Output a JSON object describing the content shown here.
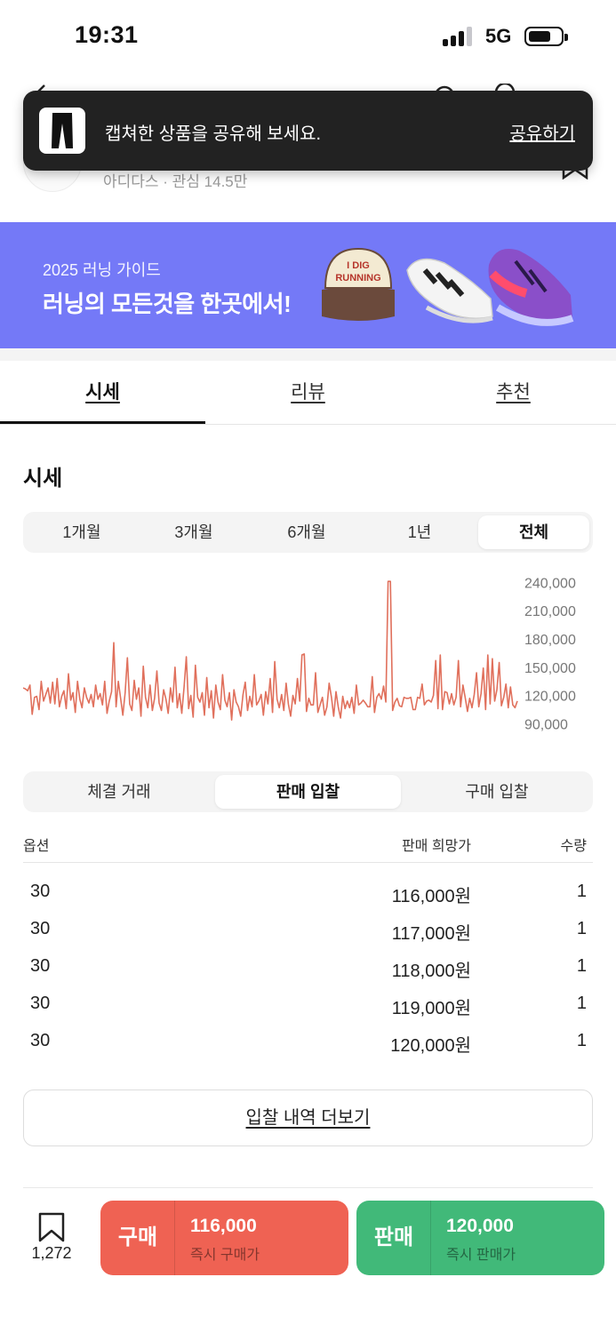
{
  "status_bar": {
    "time": "19:31",
    "network": "5G"
  },
  "product": {
    "brand_line": "아디다스 · 관심 14.5만"
  },
  "toast": {
    "message": "캡쳐한 상품을 공유해 보세요.",
    "action": "공유하기"
  },
  "banner": {
    "subtitle": "2025 러닝 가이드",
    "title": "러닝의 모든것을 한곳에서!",
    "cap_text_1": "I DIG",
    "cap_text_2": "RUNNING"
  },
  "tabs": [
    {
      "label": "시세",
      "active": true
    },
    {
      "label": "리뷰",
      "active": false
    },
    {
      "label": "추천",
      "active": false
    }
  ],
  "price_section": {
    "title": "시세"
  },
  "period_filter": [
    {
      "label": "1개월",
      "active": false
    },
    {
      "label": "3개월",
      "active": false
    },
    {
      "label": "6개월",
      "active": false
    },
    {
      "label": "1년",
      "active": false
    },
    {
      "label": "전체",
      "active": true
    }
  ],
  "chart_data": {
    "type": "line",
    "color": "#e0705c",
    "ylim": [
      80000,
      245000
    ],
    "y_ticks": [
      "240,000",
      "210,000",
      "180,000",
      "150,000",
      "120,000",
      "90,000"
    ],
    "y_tick_values": [
      240000,
      210000,
      180000,
      150000,
      120000,
      90000
    ],
    "values": [
      128000,
      127000,
      125000,
      131000,
      100000,
      118000,
      119000,
      105000,
      135000,
      114000,
      121000,
      128000,
      112000,
      134000,
      111000,
      138000,
      108000,
      119000,
      125000,
      106000,
      143000,
      115000,
      123000,
      102000,
      135000,
      116000,
      107000,
      128000,
      118000,
      112000,
      121000,
      108000,
      131000,
      116000,
      122000,
      110000,
      135000,
      101000,
      114000,
      124000,
      176000,
      108000,
      135000,
      117000,
      99000,
      123000,
      160000,
      111000,
      104000,
      136000,
      116000,
      128000,
      98000,
      151000,
      118000,
      107000,
      131000,
      104000,
      117000,
      146000,
      112000,
      104000,
      126000,
      116000,
      101000,
      128000,
      113000,
      150000,
      107000,
      122000,
      101000,
      129000,
      161000,
      106000,
      120000,
      97000,
      152000,
      118000,
      113000,
      123000,
      99000,
      139000,
      107000,
      125000,
      96000,
      131000,
      113000,
      105000,
      142000,
      115000,
      108000,
      123000,
      94000,
      126000,
      113000,
      108000,
      98000,
      121000,
      134000,
      104000,
      119000,
      108000,
      142000,
      110000,
      114000,
      121000,
      99000,
      124000,
      111000,
      138000,
      102000,
      156000,
      116000,
      107000,
      121000,
      104000,
      133000,
      111000,
      98000,
      120000,
      111000,
      138000,
      114000,
      163000,
      164000,
      103000,
      117000,
      110000,
      110000,
      144000,
      102000,
      110000,
      118000,
      99000,
      108000,
      133000,
      118000,
      98000,
      124000,
      108000,
      96000,
      119000,
      106000,
      114000,
      107000,
      118000,
      101000,
      131000,
      110000,
      112000,
      115000,
      112000,
      108000,
      108000,
      140000,
      102000,
      118000,
      122000,
      116000,
      130000,
      113000,
      241000,
      241000,
      104000,
      113000,
      117000,
      109000,
      108000,
      118000,
      117000,
      117000,
      118000,
      105000,
      105000,
      118000,
      117000,
      132000,
      110000,
      114000,
      115000,
      113000,
      120000,
      157000,
      106000,
      163000,
      105000,
      124000,
      123000,
      111000,
      122000,
      110000,
      118000,
      157000,
      108000,
      131000,
      118000,
      103000,
      117000,
      107000,
      121000,
      144000,
      108000,
      122000,
      149000,
      105000,
      163000,
      111000,
      159000,
      114000,
      126000,
      155000,
      109000,
      118000,
      132000,
      107000,
      129000,
      110000,
      107000,
      114000
    ]
  },
  "bid_tabs": [
    {
      "label": "체결 거래",
      "active": false
    },
    {
      "label": "판매 입찰",
      "active": true
    },
    {
      "label": "구매 입찰",
      "active": false
    }
  ],
  "bid_table": {
    "columns": [
      "옵션",
      "판매 희망가",
      "수량"
    ],
    "rows": [
      {
        "option": "30",
        "price": "116,000원",
        "qty": "1"
      },
      {
        "option": "30",
        "price": "117,000원",
        "qty": "1"
      },
      {
        "option": "30",
        "price": "118,000원",
        "qty": "1"
      },
      {
        "option": "30",
        "price": "119,000원",
        "qty": "1"
      },
      {
        "option": "30",
        "price": "120,000원",
        "qty": "1"
      }
    ]
  },
  "more_button": "입찰 내역 더보기",
  "bottom_bar": {
    "bookmark_count": "1,272",
    "buy": {
      "label": "구매",
      "price": "116,000",
      "sub": "즉시 구매가",
      "color": "#ef6253"
    },
    "sell": {
      "label": "판매",
      "price": "120,000",
      "sub": "즉시 판매가",
      "color": "#41b979"
    }
  }
}
